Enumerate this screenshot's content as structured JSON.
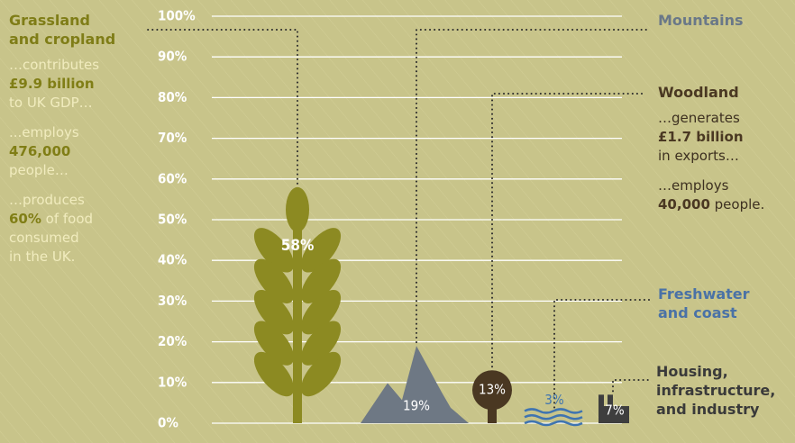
{
  "chart_data": {
    "type": "pictogram",
    "categories": [
      "Grassland\nand cropland",
      "Mountains",
      "Woodland",
      "Freshwater\nand coast",
      "Housing,\ninfrastructure,\nand industry"
    ],
    "values": [
      58,
      19,
      13,
      3,
      7
    ],
    "value_labels": [
      "58%",
      "19%",
      "13%",
      "3%",
      "7%"
    ],
    "colors": [
      "#8c8a22",
      "#6e7884",
      "#4a3822",
      "#3f74b0",
      "#3e3e3e"
    ],
    "title_colors": [
      "#7f7d17",
      "#6a7888",
      "#4a3822",
      "#4a72a6",
      "#3a3a3a"
    ],
    "notes": [
      [
        [
          {
            "text": "…contributes\n"
          },
          {
            "text": "£9.9 billion",
            "bold": true
          },
          {
            "text": "\nto UK GDP…"
          }
        ],
        [
          {
            "text": "...employs\n"
          },
          {
            "text": "476,000",
            "bold": true
          },
          {
            "text": "\npeople…"
          }
        ],
        [
          {
            "text": "…produces\n"
          },
          {
            "text": "60%",
            "bold": true
          },
          {
            "text": " of food\nconsumed\nin the UK."
          }
        ]
      ],
      [],
      [
        [
          {
            "text": "…generates\n"
          },
          {
            "text": "£1.7 billion",
            "bold": true
          },
          {
            "text": "\nin exports…"
          }
        ],
        [
          {
            "text": "…employs\n"
          },
          {
            "text": "40,000",
            "bold": true
          },
          {
            "text": " people."
          }
        ]
      ],
      [],
      []
    ],
    "ylim": [
      0,
      100
    ],
    "yticks": [
      {
        "value": 0,
        "label": "0%"
      },
      {
        "value": 10,
        "label": "10%"
      },
      {
        "value": 20,
        "label": "20%"
      },
      {
        "value": 30,
        "label": "30%"
      },
      {
        "value": 40,
        "label": "40%"
      },
      {
        "value": 50,
        "label": "50%"
      },
      {
        "value": 60,
        "label": "60%"
      },
      {
        "value": 70,
        "label": "70%"
      },
      {
        "value": 80,
        "label": "80%"
      },
      {
        "value": 90,
        "label": "90%"
      },
      {
        "value": 100,
        "label": "100%"
      }
    ],
    "grid": true
  }
}
